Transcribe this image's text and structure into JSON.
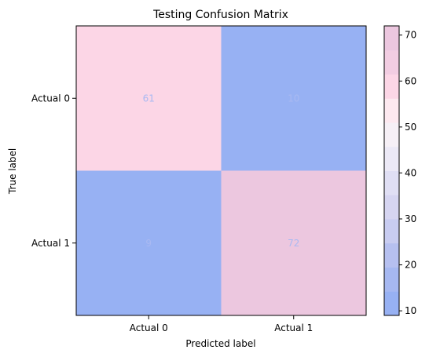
{
  "chart_data": {
    "type": "heatmap",
    "title": "Testing Confusion Matrix",
    "xlabel": "Predicted label",
    "ylabel": "True label",
    "x_categories": [
      "Actual 0",
      "Actual 1"
    ],
    "y_categories": [
      "Actual 0",
      "Actual 1"
    ],
    "values": [
      [
        61,
        10
      ],
      [
        9,
        72
      ]
    ],
    "value_label_color": "#a9b9f2",
    "colorbar": {
      "min": 9,
      "max": 72,
      "ticks": [
        10,
        20,
        30,
        40,
        50,
        60,
        70
      ],
      "colors": [
        "#97b1f3",
        "#a6b8f1",
        "#b6c0f0",
        "#c8ccf1",
        "#d6d5f1",
        "#e0dff4",
        "#ece9f6",
        "#f6f0f6",
        "#fde9f0",
        "#fcd6e6",
        "#f2cde2",
        "#ecc7df"
      ]
    }
  }
}
